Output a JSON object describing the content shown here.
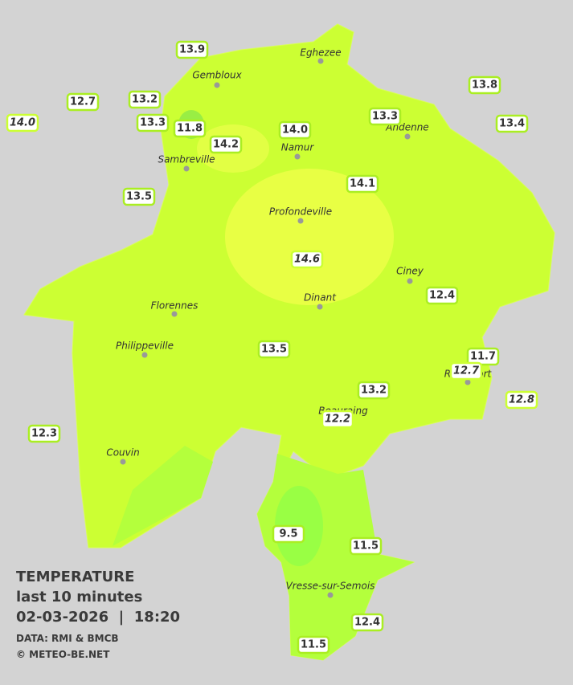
{
  "title": "TEMPERATURE",
  "subtitle": "last 10 minutes",
  "timestamp": "02-03-2026  |  18:20",
  "source": "DATA: RMI & BMCB",
  "credit": "© METEO-BE.NET",
  "towns": [
    "Eghezee",
    "Gembloux",
    "Namur",
    "Andenne",
    "Sambreville",
    "Profondeville",
    "Ciney",
    "Florennes",
    "Dinant",
    "Philippeville",
    "Rochefort",
    "Beauraing",
    "Couvin",
    "Vresse-sur-Semois"
  ],
  "stations": [
    "13.9",
    "12.7",
    "13.2",
    "13.3",
    "11.8",
    "14.2",
    "14.0",
    "13.3",
    "13.8",
    "13.4",
    "13.5",
    "14.1",
    "12.4",
    "13.5",
    "11.7",
    "13.2",
    "12.3",
    "9.5",
    "11.5",
    "12.4",
    "11.5"
  ],
  "italic_stations": [
    "14.0",
    "14.6",
    "12.7",
    "12.8",
    "12.2"
  ]
}
